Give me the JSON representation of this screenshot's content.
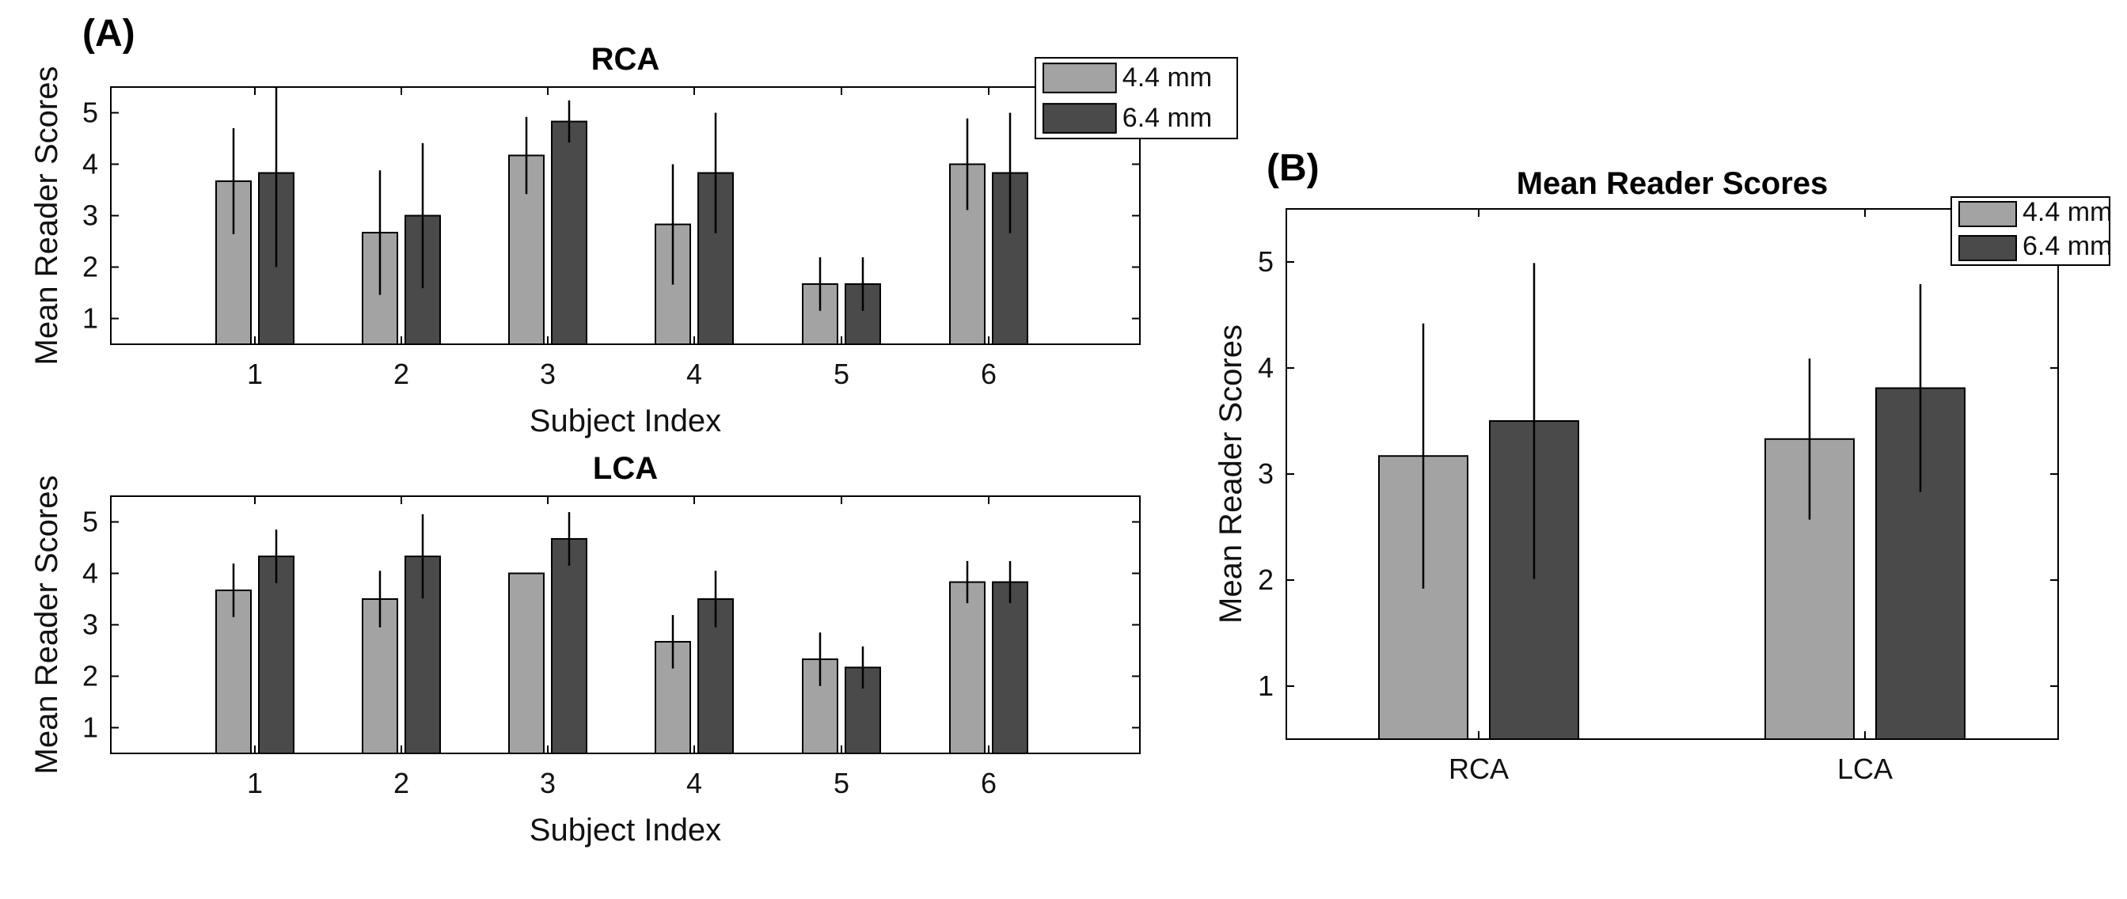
{
  "panel_a_label": "(A)",
  "panel_b_label": "(B)",
  "colors": {
    "series_1": "#a3a3a3",
    "series_2": "#4a4a4a"
  },
  "chart_data": [
    {
      "id": "rca",
      "type": "bar",
      "title": "RCA",
      "xlabel": "Subject Index",
      "ylabel": "Mean Reader Scores",
      "categories": [
        "1",
        "2",
        "3",
        "4",
        "5",
        "6"
      ],
      "ylim": [
        0.5,
        5.5
      ],
      "yticks": [
        "1",
        "2",
        "3",
        "4",
        "5"
      ],
      "legend_position": "top-right",
      "series": [
        {
          "name": "4.4 mm",
          "values": [
            3.67,
            2.67,
            4.17,
            2.83,
            1.67,
            4.0
          ],
          "err": [
            1.03,
            1.21,
            0.75,
            1.17,
            0.52,
            0.89
          ]
        },
        {
          "name": "6.4 mm",
          "values": [
            3.83,
            3.0,
            4.83,
            3.83,
            1.67,
            3.83
          ],
          "err": [
            1.83,
            1.41,
            0.41,
            1.17,
            0.52,
            1.17
          ]
        }
      ]
    },
    {
      "id": "lca",
      "type": "bar",
      "title": "LCA",
      "xlabel": "Subject Index",
      "ylabel": "Mean Reader Scores",
      "categories": [
        "1",
        "2",
        "3",
        "4",
        "5",
        "6"
      ],
      "ylim": [
        0.5,
        5.5
      ],
      "yticks": [
        "1",
        "2",
        "3",
        "4",
        "5"
      ],
      "series": [
        {
          "name": "4.4 mm",
          "values": [
            3.67,
            3.5,
            4.0,
            2.67,
            2.33,
            3.83
          ],
          "err": [
            0.52,
            0.55,
            0.0,
            0.52,
            0.52,
            0.41
          ]
        },
        {
          "name": "6.4 mm",
          "values": [
            4.33,
            4.33,
            4.67,
            3.5,
            2.17,
            3.83
          ],
          "err": [
            0.52,
            0.82,
            0.52,
            0.55,
            0.41,
            0.41
          ]
        }
      ]
    },
    {
      "id": "mean",
      "type": "bar",
      "title": "Mean Reader Scores",
      "xlabel": "",
      "ylabel": "Mean Reader Scores",
      "categories": [
        "RCA",
        "LCA"
      ],
      "ylim": [
        0.5,
        5.5
      ],
      "yticks": [
        "1",
        "2",
        "3",
        "4",
        "5"
      ],
      "legend_position": "top-right",
      "series": [
        {
          "name": "4.4 mm",
          "values": [
            3.17,
            3.33
          ],
          "err": [
            1.25,
            0.76
          ]
        },
        {
          "name": "6.4 mm",
          "values": [
            3.5,
            3.81
          ],
          "err": [
            1.49,
            0.98
          ]
        }
      ]
    }
  ]
}
